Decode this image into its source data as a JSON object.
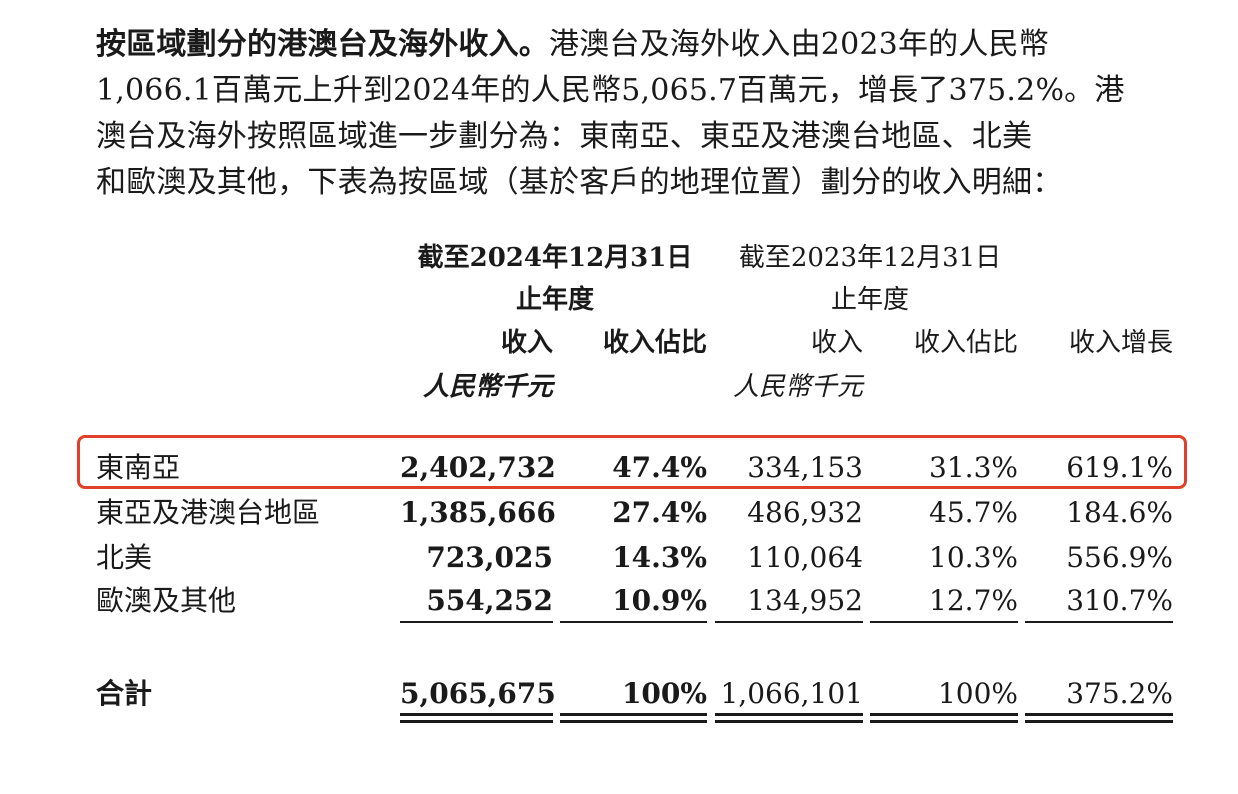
{
  "paragraph": {
    "lead": "按區域劃分的港澳台及海外收入。",
    "line1_rest": "港澳台及海外收入由2023年的人民幣",
    "line2": "1,066.1百萬元上升到2024年的人民幣5,065.7百萬元，增長了375.2%。港",
    "line3": "澳台及海外按照區域進一步劃分為：東南亞、東亞及港澳台地區、北美",
    "line4": "和歐澳及其他，下表為按區域（基於客戶的地理位置）劃分的收入明細："
  },
  "table": {
    "period_2024_line1": "截至2024年12月31日",
    "period_2024_line2": "止年度",
    "period_2023_line1": "截至2023年12月31日",
    "period_2023_line2": "止年度",
    "col_revenue": "收入",
    "col_share": "收入佔比",
    "col_growth": "收入增長",
    "unit": "人民幣千元",
    "rows": [
      {
        "region": "東南亞",
        "rev_2024": "2,402,732",
        "share_2024": "47.4%",
        "rev_2023": "334,153",
        "share_2023": "31.3%",
        "growth": "619.1%"
      },
      {
        "region": "東亞及港澳台地區",
        "rev_2024": "1,385,666",
        "share_2024": "27.4%",
        "rev_2023": "486,932",
        "share_2023": "45.7%",
        "growth": "184.6%"
      },
      {
        "region": "北美",
        "rev_2024": "723,025",
        "share_2024": "14.3%",
        "rev_2023": "110,064",
        "share_2023": "10.3%",
        "growth": "556.9%"
      },
      {
        "region": "歐澳及其他",
        "rev_2024": "554,252",
        "share_2024": "10.9%",
        "rev_2023": "134,952",
        "share_2023": "12.7%",
        "growth": "310.7%"
      }
    ],
    "total": {
      "label": "合計",
      "rev_2024": "5,065,675",
      "share_2024": "100%",
      "rev_2023": "1,066,101",
      "share_2023": "100%",
      "growth": "375.2%"
    }
  },
  "highlight_color": "#e0402a"
}
